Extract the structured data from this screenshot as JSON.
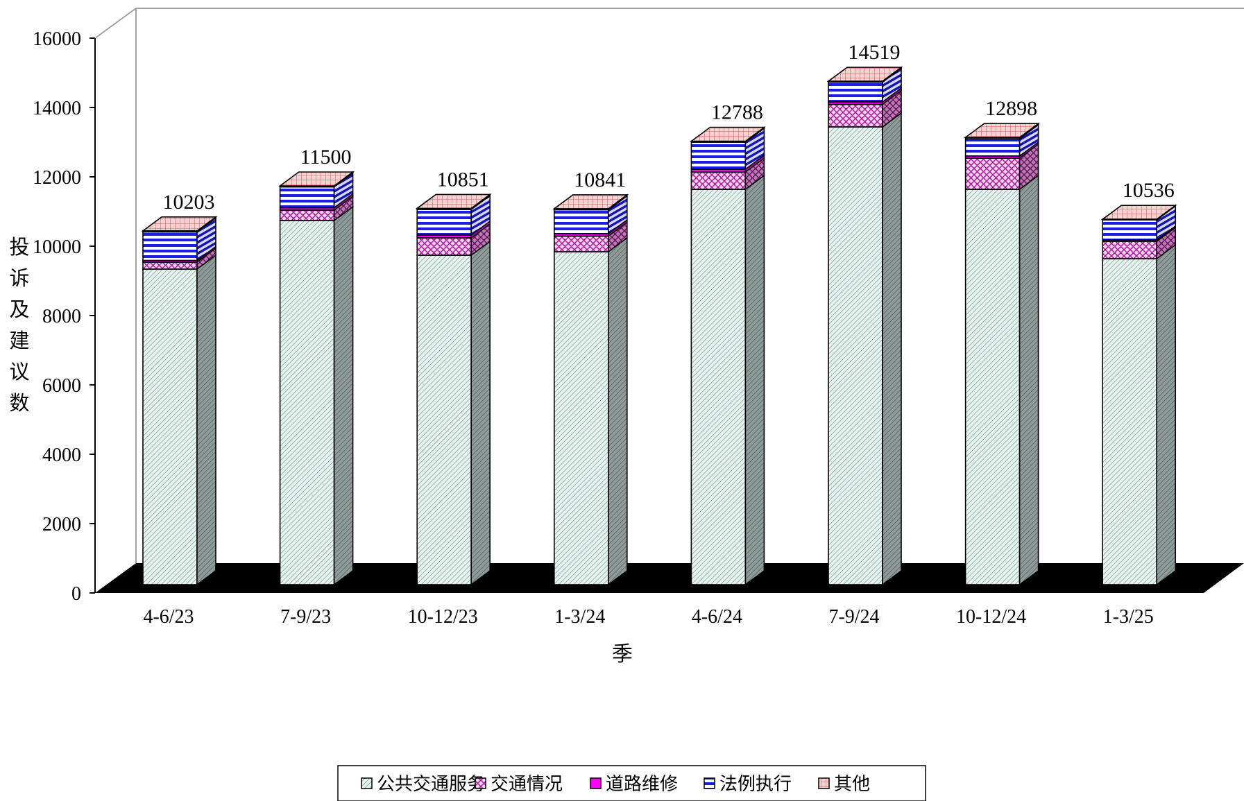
{
  "chart_data": {
    "type": "bar",
    "stacked": true,
    "three_d": true,
    "categories": [
      "4-6/23",
      "7-9/23",
      "10-12/23",
      "1-3/24",
      "4-6/24",
      "7-9/24",
      "10-12/24",
      "1-3/25"
    ],
    "series": [
      {
        "name": "公共交通服务",
        "values": [
          9100,
          10500,
          9500,
          9600,
          11400,
          13200,
          11400,
          9400
        ],
        "color": "#e4f2ee",
        "pattern": "hatch-fine"
      },
      {
        "name": "交通情况",
        "values": [
          200,
          300,
          500,
          450,
          500,
          650,
          900,
          500
        ],
        "color": "#e6a8df",
        "pattern": "crosshatch"
      },
      {
        "name": "道路维修",
        "values": [
          50,
          70,
          80,
          70,
          80,
          70,
          60,
          40
        ],
        "color": "#ff00ff",
        "pattern": "solid"
      },
      {
        "name": "法例执行",
        "values": [
          820,
          600,
          740,
          690,
          780,
          570,
          500,
          580
        ],
        "color": "#2222ee",
        "pattern": "stripes"
      },
      {
        "name": "其他",
        "values": [
          33,
          30,
          31,
          31,
          28,
          29,
          38,
          16
        ],
        "color": "#f1c2c2",
        "pattern": "grid"
      }
    ],
    "totals": [
      10203,
      11500,
      10851,
      10841,
      12788,
      14519,
      12898,
      10536
    ],
    "total_labels": [
      "10203",
      "11500",
      "10851",
      "10841",
      "12788",
      "14519",
      "12898",
      "10536"
    ],
    "ylim": [
      0,
      16000
    ],
    "yticks": [
      0,
      2000,
      4000,
      6000,
      8000,
      10000,
      12000,
      14000,
      16000
    ],
    "ytick_labels": [
      "0",
      "2000",
      "4000",
      "6000",
      "8000",
      "10000",
      "12000",
      "14000",
      "16000"
    ],
    "ylabel": "投诉及建议数",
    "xlabel": "季",
    "grid": false,
    "legend_position": "bottom"
  }
}
